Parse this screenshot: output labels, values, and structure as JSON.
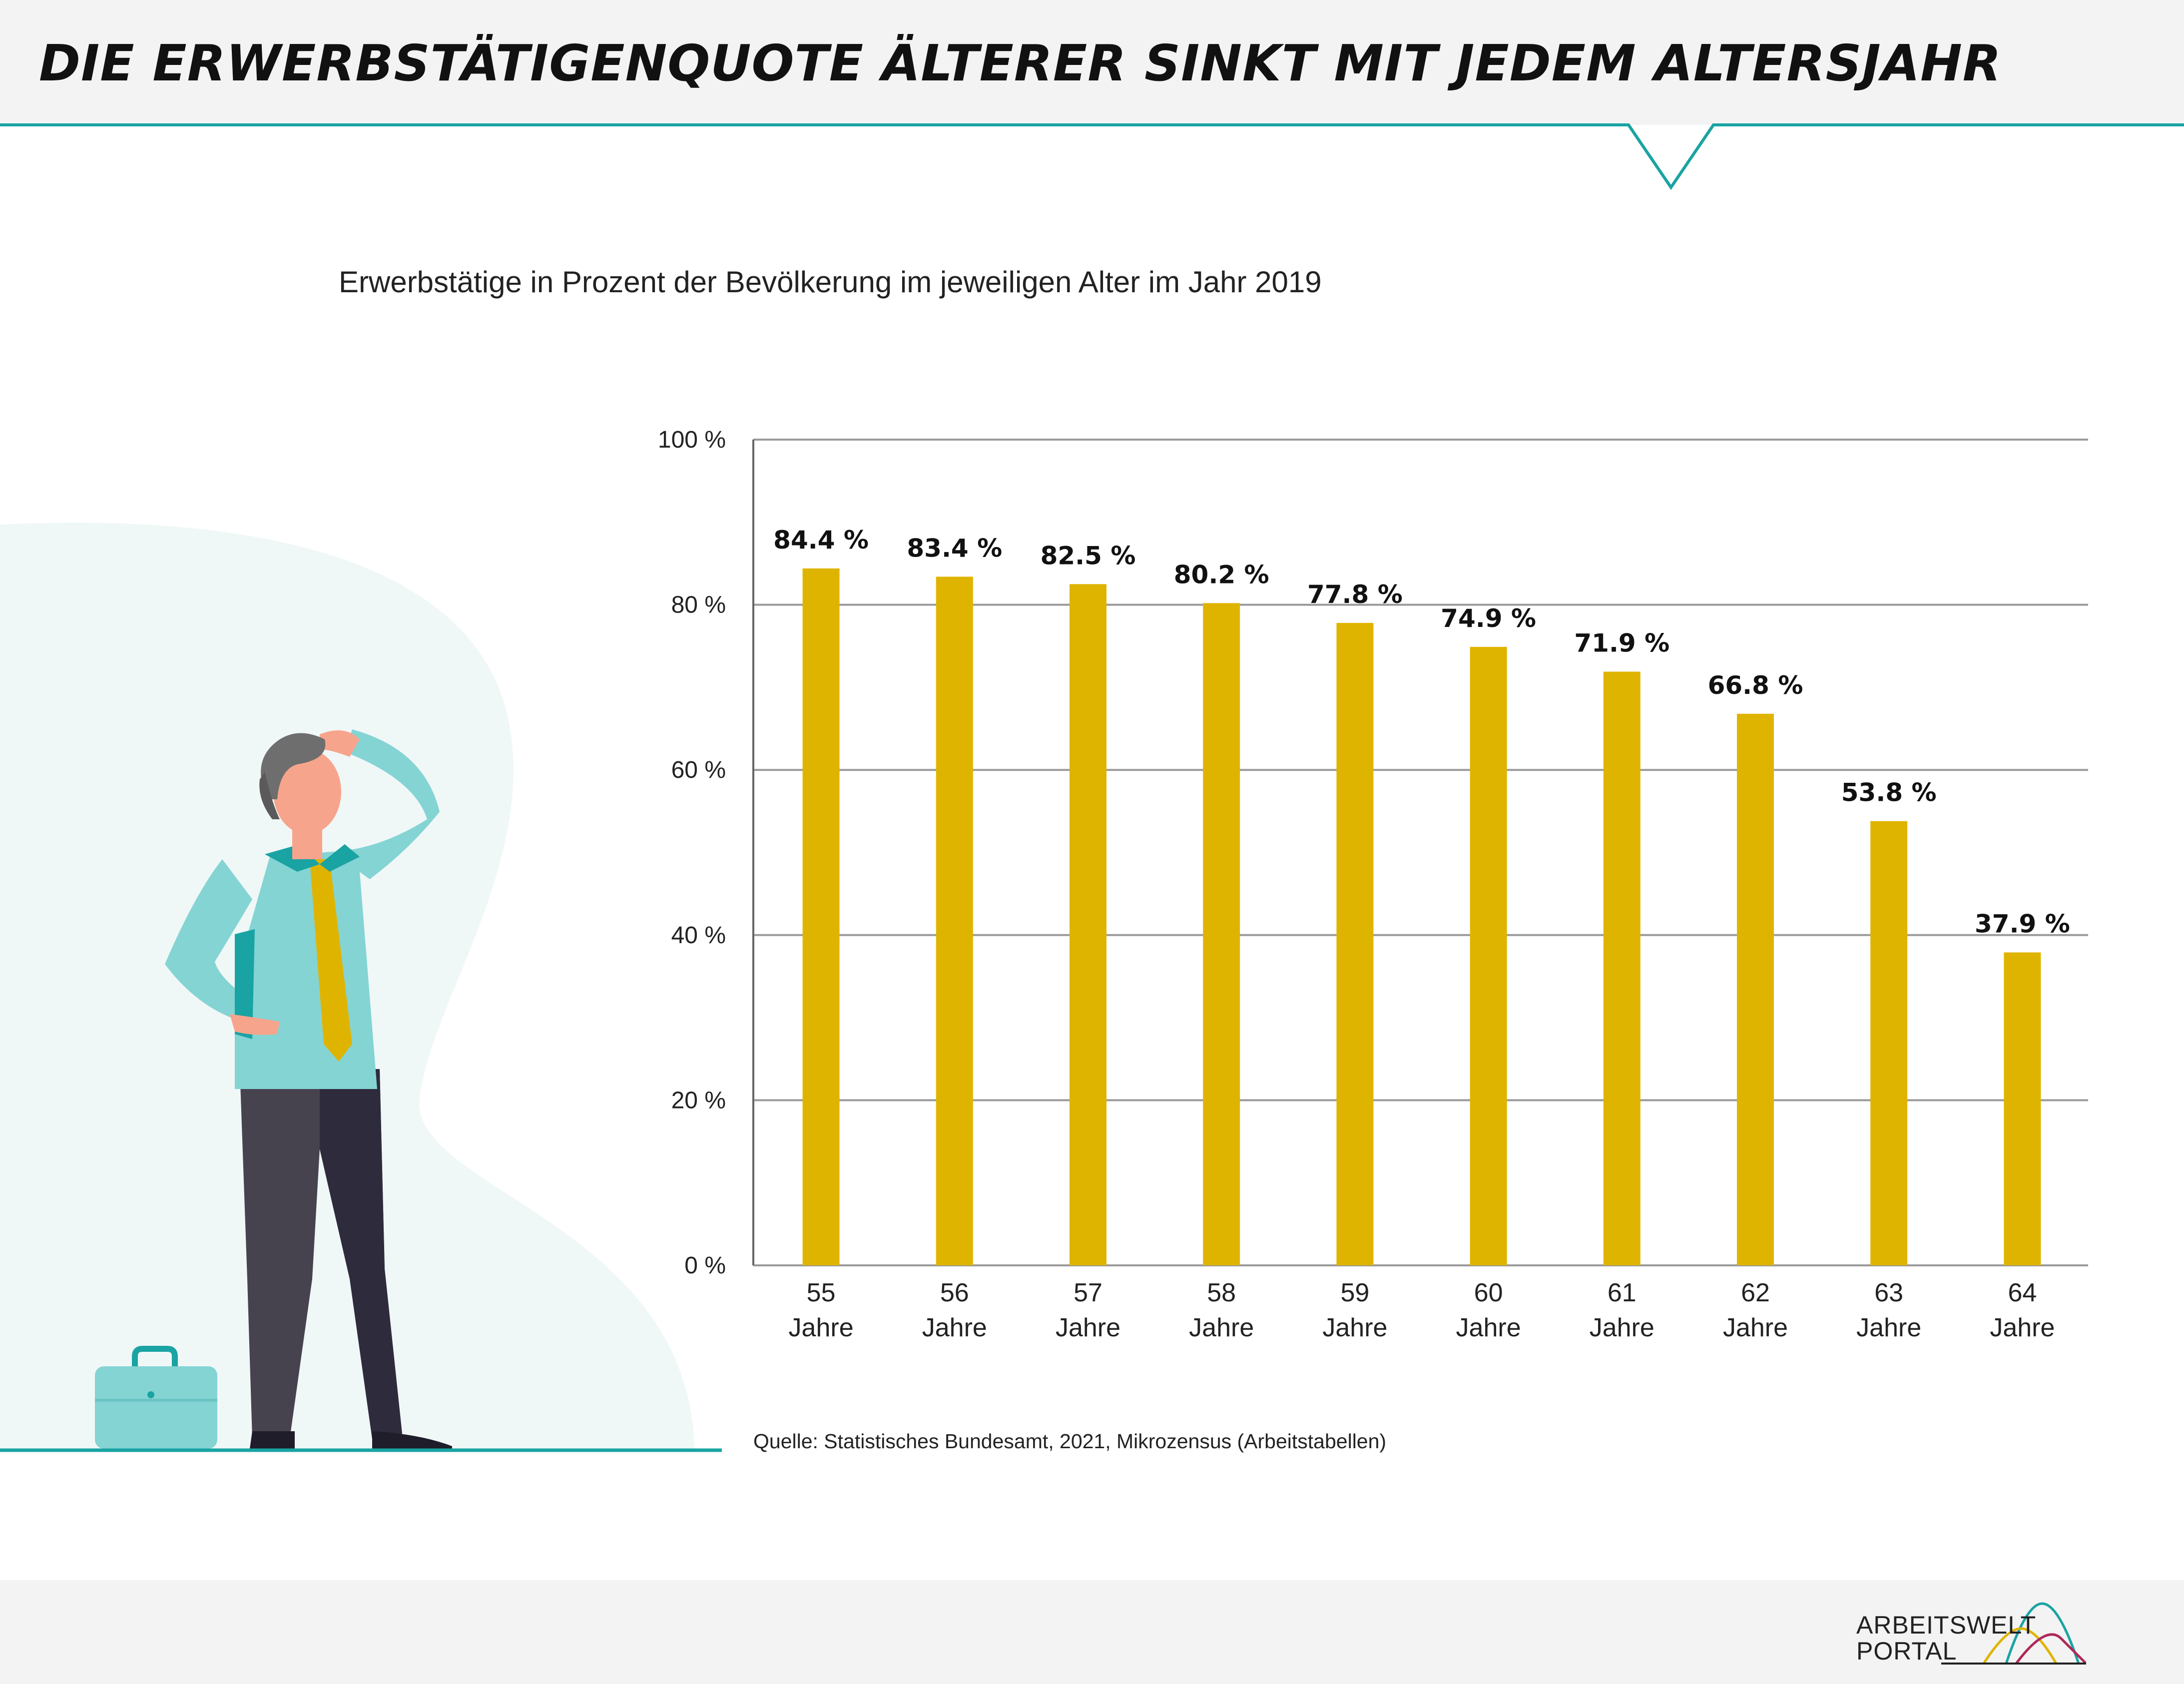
{
  "title": "DIE ERWERBSTÄTIGENQUOTE ÄLTERER SINKT MIT JEDEM ALTERSJAHR",
  "subtitle": "Erwerbstätige in Prozent der Bevölkerung im jeweiligen Alter im Jahr 2019",
  "source": "Quelle: Statistisches Bundesamt, 2021, Mikrozensus (Arbeitstabellen)",
  "logo": {
    "line1": "ARBEITSWELT",
    "line2": "PORTAL"
  },
  "colors": {
    "bar": "#dfb400",
    "accent": "#1aa3a3",
    "shirt": "#84d4d4",
    "background_blob": "#f0f7f7",
    "header_bg": "#f3f3f3"
  },
  "chart_data": {
    "type": "bar",
    "categories": [
      [
        "55",
        "Jahre"
      ],
      [
        "56",
        "Jahre"
      ],
      [
        "57",
        "Jahre"
      ],
      [
        "58",
        "Jahre"
      ],
      [
        "59",
        "Jahre"
      ],
      [
        "60",
        "Jahre"
      ],
      [
        "61",
        "Jahre"
      ],
      [
        "62",
        "Jahre"
      ],
      [
        "63",
        "Jahre"
      ],
      [
        "64",
        "Jahre"
      ]
    ],
    "values": [
      84.4,
      83.4,
      82.5,
      80.2,
      77.8,
      74.9,
      71.9,
      66.8,
      53.8,
      37.9
    ],
    "value_labels": [
      "84.4 %",
      "83.4 %",
      "82.5 %",
      "80.2 %",
      "77.8 %",
      "74.9 %",
      "71.9 %",
      "66.8 %",
      "53.8 %",
      "37.9 %"
    ],
    "yticks": [
      0,
      20,
      40,
      60,
      80,
      100
    ],
    "ytick_labels": [
      "0 %",
      "20 %",
      "40 %",
      "60 %",
      "80 %",
      "100 %"
    ],
    "ylim": [
      0,
      100
    ],
    "grid": true,
    "legend": "none"
  }
}
